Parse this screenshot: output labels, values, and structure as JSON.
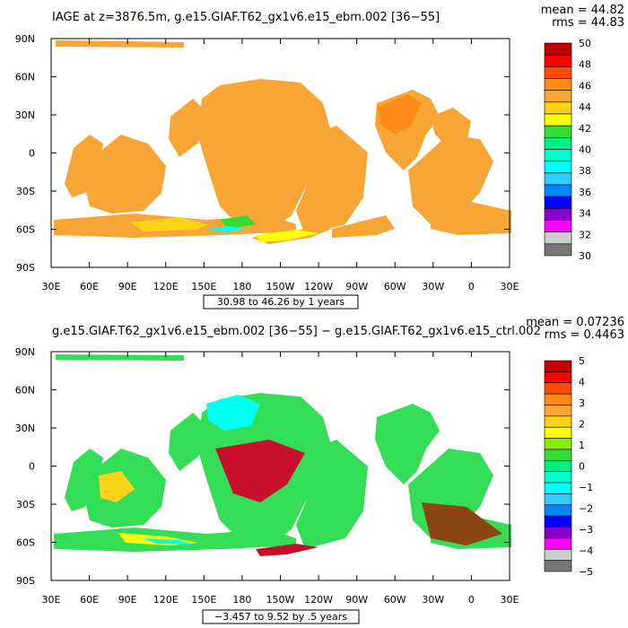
{
  "panels": [
    {
      "title": "IAGE at z=3876.5m, g.e15.GIAF.T62_gx1v6.e15_ebm.002 [36−55]",
      "mean_text": "mean = 44.82",
      "rms_text": "rms = 44.83",
      "range_text": "30.98 to 46.26 by 1 years",
      "colorbar": {
        "labels": [
          "50",
          "48",
          "46",
          "44",
          "42",
          "40",
          "38",
          "36",
          "34",
          "32",
          "30"
        ],
        "colors": [
          "#c00000",
          "#ff0000",
          "#ff4d00",
          "#ff8c1a",
          "#ffa533",
          "#ffd21a",
          "#ffff00",
          "#33dd33",
          "#00ee88",
          "#00ffcc",
          "#00ffff",
          "#33ccff",
          "#0088ff",
          "#0000ff",
          "#8800cc",
          "#ff00ff",
          "#cccccc",
          "#777777"
        ]
      },
      "land_fill": "#f7a535",
      "accent_fills": [
        "#ffd21a",
        "#ffff00",
        "#33dd33",
        "#00ffff",
        "#ff8c1a"
      ]
    },
    {
      "title": "g.e15.GIAF.T62_gx1v6.e15_ebm.002 [36−55] − g.e15.GIAF.T62_gx1v6.e15_ctrl.002",
      "mean_text": "mean = 0.07236",
      "rms_text": "rms = 0.4463",
      "range_text": "−3.457 to 9.52 by .5 years",
      "colorbar": {
        "labels": [
          "5",
          "4",
          "3",
          "2",
          "1",
          "0",
          "−1",
          "−2",
          "−3",
          "−4",
          "−5"
        ],
        "colors": [
          "#c00000",
          "#ff0000",
          "#ff4d00",
          "#ff8c1a",
          "#ffa533",
          "#ffd21a",
          "#ffff00",
          "#88ee00",
          "#33dd33",
          "#00ee88",
          "#00ffcc",
          "#00ffff",
          "#33ccff",
          "#0088ff",
          "#0000ff",
          "#8800cc",
          "#ff00ff",
          "#cccccc",
          "#777777"
        ]
      },
      "land_fill": "#33dd55",
      "accent_fills": [
        "#00ffee",
        "#c8102e",
        "#ffd21a",
        "#8b4513",
        "#ffff00"
      ]
    }
  ],
  "axes": {
    "x_ticks": [
      "30E",
      "60E",
      "90E",
      "120E",
      "150E",
      "180",
      "150W",
      "120W",
      "90W",
      "60W",
      "30W",
      "0",
      "30E"
    ],
    "y_ticks": [
      "90N",
      "60N",
      "30N",
      "0",
      "30S",
      "60S",
      "90S"
    ]
  },
  "chart_data": [
    {
      "type": "heatmap",
      "title": "IAGE at z=3876.5m, g.e15.GIAF.T62_gx1v6.e15_ebm.002 [36−55]",
      "summary": {
        "mean": 44.82,
        "rms": 44.83,
        "min": 30.98,
        "max": 46.26,
        "contour_interval": 1,
        "units": "years"
      },
      "colorbar_levels": [
        30,
        32,
        34,
        36,
        38,
        40,
        42,
        44,
        46,
        48,
        50
      ],
      "x_ticks": [
        "30E",
        "60E",
        "90E",
        "120E",
        "150E",
        "180",
        "150W",
        "120W",
        "90W",
        "60W",
        "30W",
        "0",
        "30E"
      ],
      "y_ticks": [
        "90N",
        "60N",
        "30N",
        "0",
        "30S",
        "60S",
        "90S"
      ],
      "xlim": [
        30,
        390
      ],
      "ylim": [
        -90,
        90
      ]
    },
    {
      "type": "heatmap",
      "title": "g.e15.GIAF.T62_gx1v6.e15_ebm.002 [36−55] − g.e15.GIAF.T62_gx1v6.e15_ctrl.002",
      "summary": {
        "mean": 0.07236,
        "rms": 0.4463,
        "min": -3.457,
        "max": 9.52,
        "contour_interval": 0.5,
        "units": "years"
      },
      "colorbar_levels": [
        -5,
        -4,
        -3,
        -2,
        -1,
        0,
        1,
        2,
        3,
        4,
        5
      ],
      "x_ticks": [
        "30E",
        "60E",
        "90E",
        "120E",
        "150E",
        "180",
        "150W",
        "120W",
        "90W",
        "60W",
        "30W",
        "0",
        "30E"
      ],
      "y_ticks": [
        "90N",
        "60N",
        "30N",
        "0",
        "30S",
        "60S",
        "90S"
      ],
      "xlim": [
        30,
        390
      ],
      "ylim": [
        -90,
        90
      ]
    }
  ]
}
